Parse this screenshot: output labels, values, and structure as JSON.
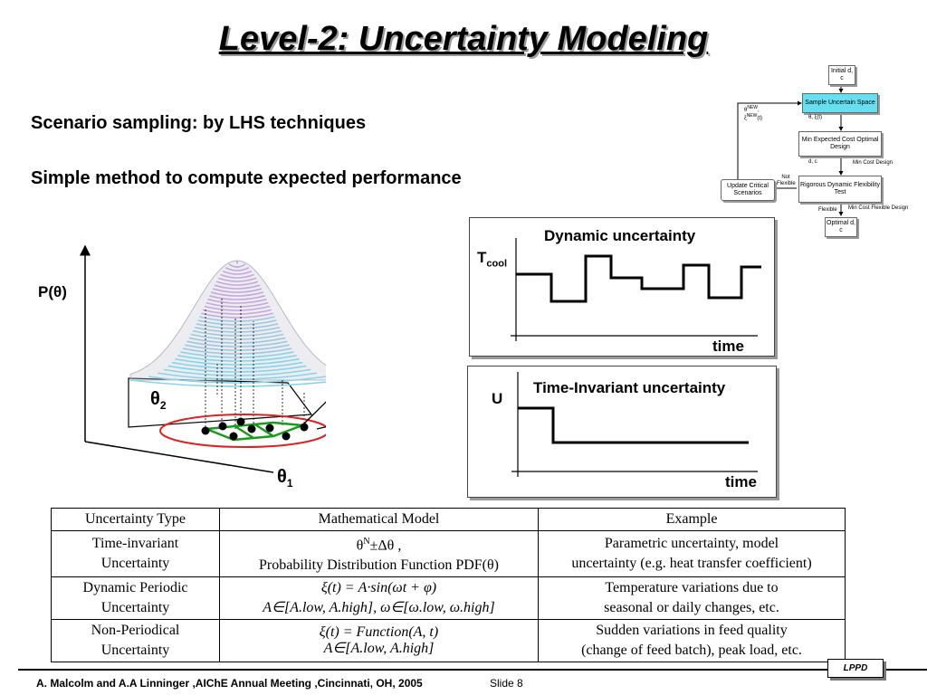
{
  "slide": {
    "title": "Level-2: Uncertainty Modeling",
    "bullets": [
      "Scenario sampling: by LHS techniques",
      "Simple method to compute expected performance"
    ],
    "footer": "A. Malcolm and A.A Linninger ,AIChE Annual Meeting ,Cincinnati, OH, 2005",
    "slide_number": "Slide 8",
    "logo": "LPPD"
  },
  "flowchart": {
    "initial": "Initial d, c",
    "sample": "Sample Uncertain Space",
    "theta_xi": "θ, ξ(t)",
    "min_expected": "Min Expected Cost Optimal Design",
    "dc": "d, c",
    "min_cost_design": "Min Cost  Design",
    "rigorous": "Rigorous Dynamic Flexibility Test",
    "flexible": "Flexible",
    "min_cost_flex": "Min Cost Flexible Design",
    "optimal": "Optimal d, c",
    "not_flexible": "Not Flexible",
    "update": "Update Critical Scenarios",
    "theta_new": "θNEW,",
    "xi_new": "ξNEW(t)",
    "colors": {
      "sample_fill": "#66e0f0"
    }
  },
  "surface": {
    "p_label": "P(θ)",
    "theta1": "θ1",
    "theta2": "θ2"
  },
  "dynamic_panel": {
    "title": "Dynamic uncertainty",
    "ylabel": "T",
    "ylabel_sub": "cool",
    "xlabel": "time"
  },
  "invariant_panel": {
    "title": "Time-Invariant uncertainty",
    "ylabel": "U",
    "xlabel": "time"
  },
  "table": {
    "headers": [
      "Uncertainty Type",
      "Mathematical Model",
      "Example"
    ],
    "rows": [
      {
        "type": [
          "Time-invariant",
          "Uncertainty"
        ],
        "model": [
          "θN±Δθ ,",
          "Probability Distribution Function PDF(θ)"
        ],
        "example": [
          "Parametric uncertainty, model",
          "uncertainty (e.g. heat transfer coefficient)"
        ]
      },
      {
        "type": [
          "Dynamic Periodic",
          "Uncertainty"
        ],
        "model": [
          "ξ(t) = A·sin(ωt + φ)",
          "A∈[A.low, A.high], ω∈[ω.low, ω.high]"
        ],
        "example": [
          "Temperature variations due to",
          "seasonal or daily changes, etc."
        ]
      },
      {
        "type": [
          "Non-Periodical",
          "Uncertainty"
        ],
        "model": [
          "ξ(t) = Function(A, t)",
          "A∈[A.low, A.high]"
        ],
        "example": [
          "Sudden variations in feed quality",
          "(change of feed batch), peak load, etc."
        ]
      }
    ]
  }
}
